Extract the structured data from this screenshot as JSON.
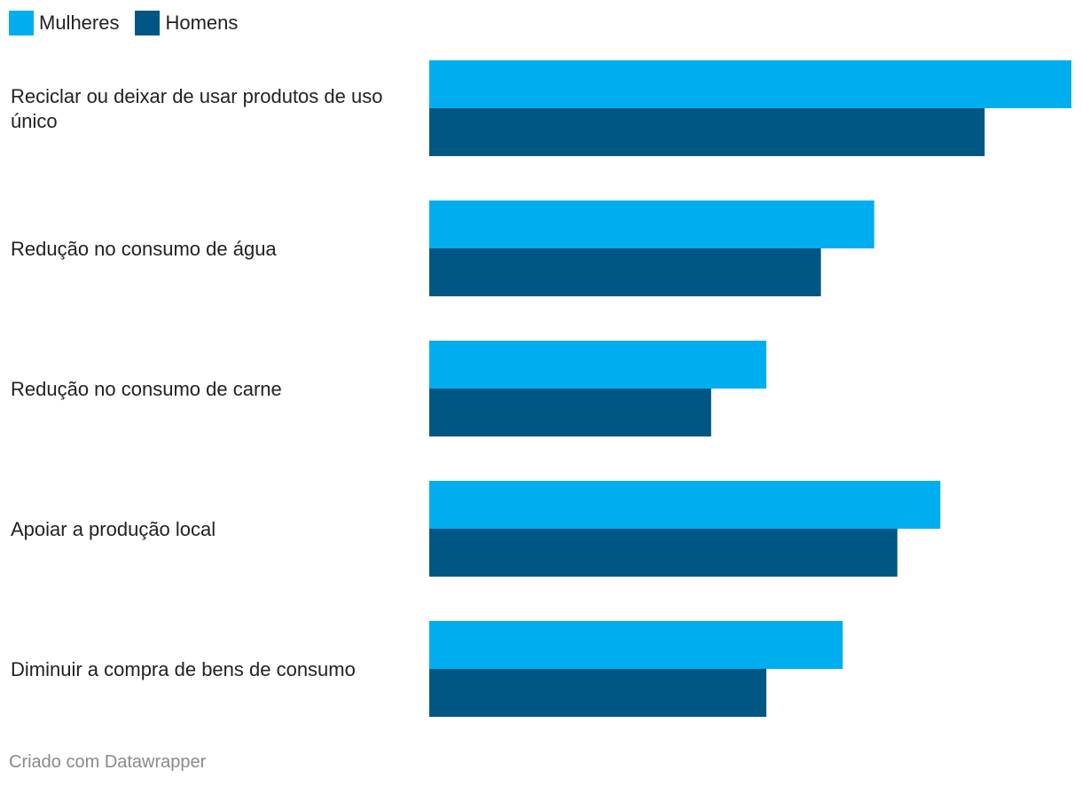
{
  "legend": {
    "items": [
      {
        "label": "Mulheres",
        "color": "#00aeef"
      },
      {
        "label": "Homens",
        "color": "#005783"
      }
    ]
  },
  "chart_data": {
    "type": "bar",
    "orientation": "horizontal",
    "title": "",
    "xlabel": "",
    "ylabel": "",
    "categories": [
      "Reciclar ou deixar de usar produtos de uso único",
      "Redução no consumo de água",
      "Redução no consumo de carne",
      "Apoiar a produção local",
      "Diminuir a compra de bens de consumo"
    ],
    "series": [
      {
        "name": "Mulheres",
        "color": "#00aeef",
        "values": [
          100,
          69.3,
          52.5,
          79.6,
          64.4
        ]
      },
      {
        "name": "Homens",
        "color": "#005783",
        "values": [
          86.5,
          61.0,
          43.9,
          72.9,
          52.5
        ]
      }
    ],
    "xlim": [
      0,
      100
    ],
    "grid": false,
    "legend_position": "top-left"
  },
  "footer": {
    "credit": "Criado com Datawrapper"
  }
}
